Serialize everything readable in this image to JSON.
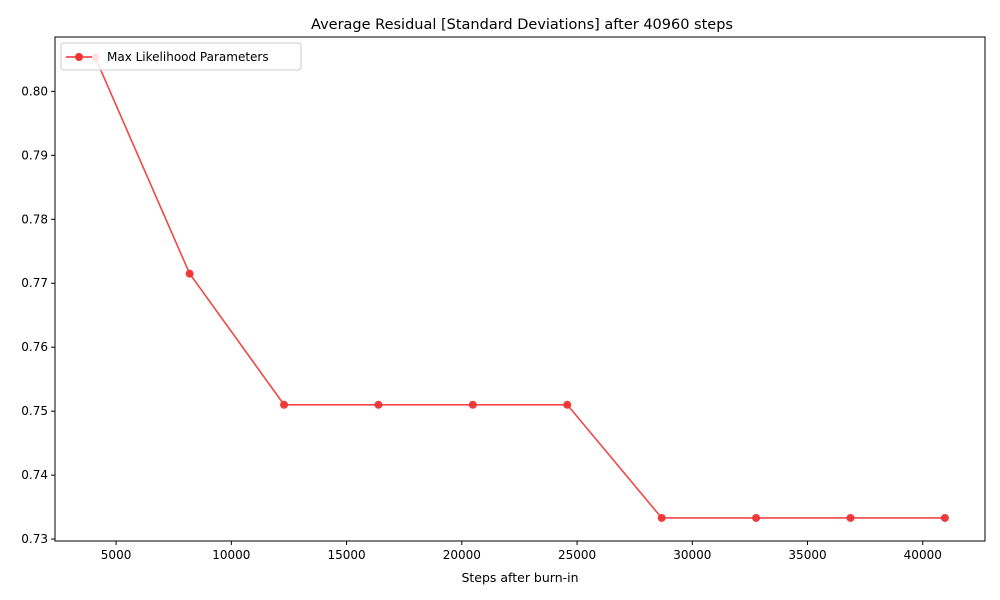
{
  "chart_data": {
    "type": "line",
    "title": "Average Residual [Standard Deviations] after 40960 steps",
    "xlabel": "Steps after burn-in",
    "ylabel": "",
    "xlim": [
      2350,
      42700
    ],
    "ylim": [
      0.7297,
      0.8085
    ],
    "xticks": [
      5000,
      10000,
      15000,
      20000,
      25000,
      30000,
      35000,
      40000
    ],
    "yticks": [
      0.73,
      0.74,
      0.75,
      0.76,
      0.77,
      0.78,
      0.79,
      0.8
    ],
    "ytick_labels": [
      "0.73",
      "0.74",
      "0.75",
      "0.76",
      "0.77",
      "0.78",
      "0.79",
      "0.80"
    ],
    "grid": false,
    "legend_position": "upper-left",
    "series": [
      {
        "name": "Max Likelihood Parameters",
        "color": "#ee3333",
        "marker": "circle",
        "x": [
          4096,
          8192,
          12288,
          16384,
          20480,
          24576,
          28672,
          32768,
          36864,
          40960
        ],
        "y": [
          0.8053,
          0.7715,
          0.751,
          0.751,
          0.751,
          0.751,
          0.7333,
          0.7333,
          0.7333,
          0.7333
        ]
      }
    ]
  }
}
